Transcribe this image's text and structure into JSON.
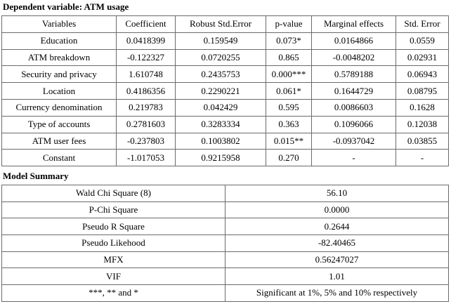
{
  "title": "Dependent variable: ATM usage",
  "table1": {
    "header": [
      "Variables",
      "Coefficient",
      "Robust Std.Error",
      "p-value",
      "Marginal effects",
      "Std. Error"
    ],
    "rows": [
      [
        "Education",
        "0.0418399",
        "0.159549",
        "0.073*",
        "0.0164866",
        "0.0559"
      ],
      [
        "ATM breakdown",
        "-0.122327",
        "0.0720255",
        "0.865",
        "-0.0048202",
        "0.02931"
      ],
      [
        "Security and privacy",
        "1.610748",
        "0.2435753",
        "0.000***",
        "0.5789188",
        "0.06943"
      ],
      [
        "Location",
        "0.4186356",
        "0.2290221",
        "0.061*",
        "0.1644729",
        "0.08795"
      ],
      [
        "Currency denomination",
        "0.219783",
        "0.042429",
        "0.595",
        "0.0086603",
        "0.1628"
      ],
      [
        "Type of accounts",
        "0.2781603",
        "0.3283334",
        "0.363",
        "0.1096066",
        "0.12038"
      ],
      [
        "ATM user fees",
        "-0.237803",
        "0.1003802",
        "0.015**",
        "-0.0937042",
        "0.03855"
      ],
      [
        "Constant",
        "-1.017053",
        "0.9215958",
        "0.270",
        "-",
        "-"
      ]
    ]
  },
  "summary_title": "Model Summary",
  "table2": {
    "rows": [
      [
        "Wald Chi Square (8)",
        "56.10"
      ],
      [
        "P-Chi Square",
        "0.0000"
      ],
      [
        "Pseudo R Square",
        "0.2644"
      ],
      [
        "Pseudo Likehood",
        "-82.40465"
      ],
      [
        "MFX",
        "0.56247027"
      ],
      [
        "VIF",
        "1.01"
      ],
      [
        "***, ** and *",
        "Significant at 1%, 5% and 10% respectively"
      ]
    ]
  }
}
